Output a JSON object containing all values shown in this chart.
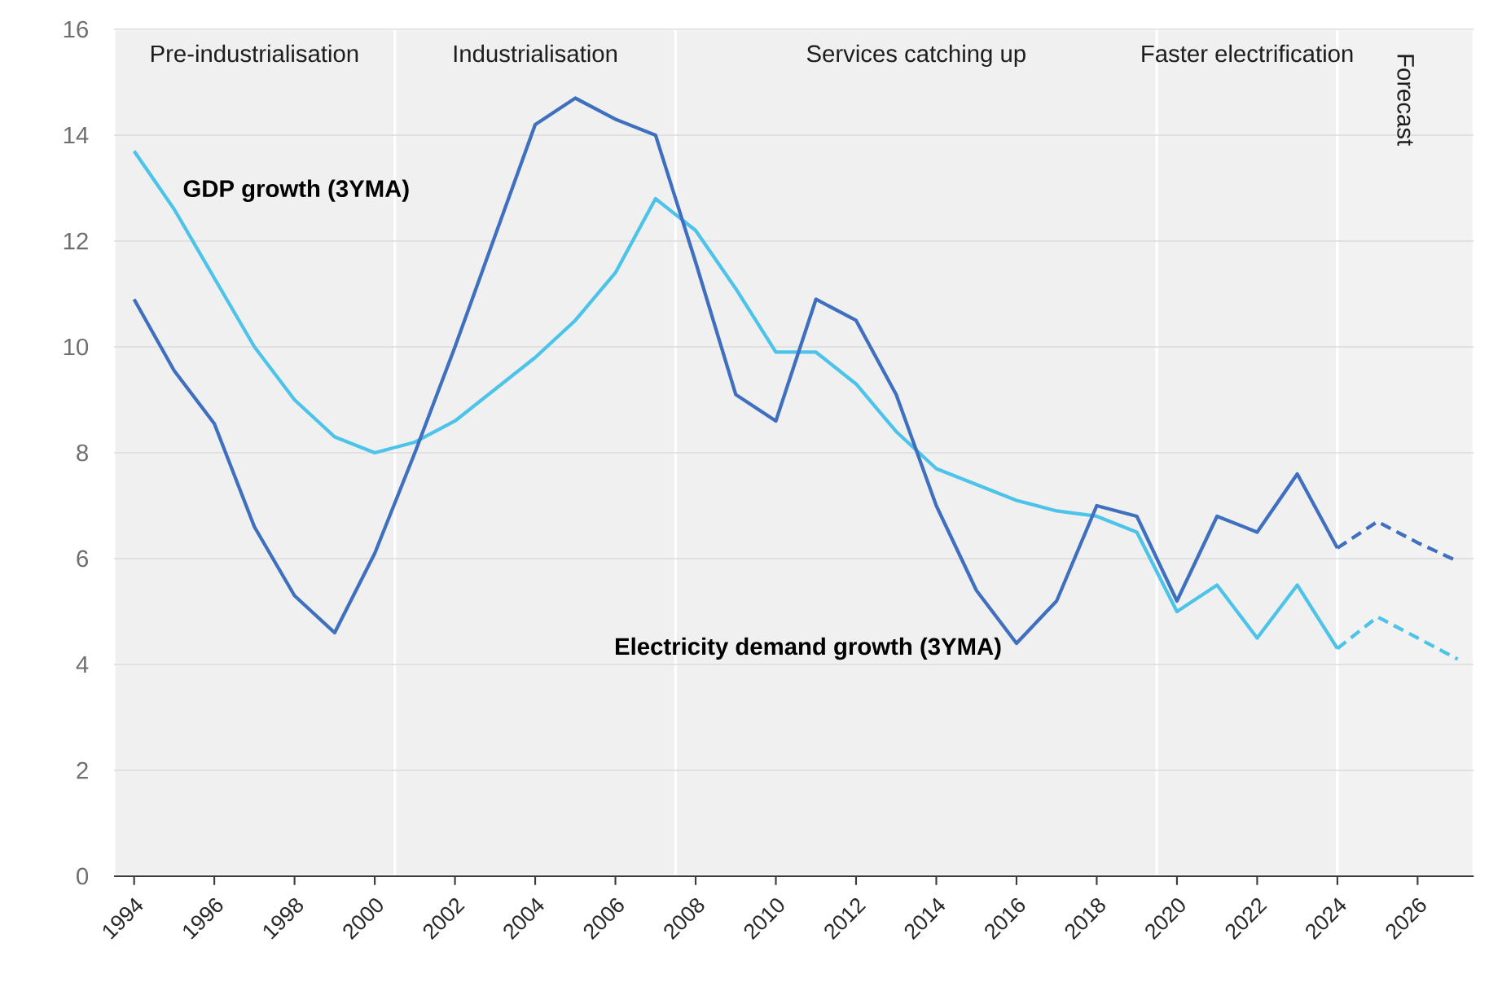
{
  "chart_data": {
    "type": "line",
    "xlim": [
      1993.5,
      2027.4
    ],
    "ylim": [
      0,
      16
    ],
    "xticks": [
      1994,
      1996,
      1998,
      2000,
      2002,
      2004,
      2006,
      2008,
      2010,
      2012,
      2014,
      2016,
      2018,
      2020,
      2022,
      2024,
      2026
    ],
    "yticks": [
      0,
      2,
      4,
      6,
      8,
      10,
      12,
      14,
      16
    ],
    "grid": "y",
    "marker": "none",
    "bands": [
      {
        "axis": "x",
        "from": 1993.5,
        "to": 2000.5,
        "label": "Pre-industrialisation",
        "color": "#f0f0f0"
      },
      {
        "axis": "x",
        "from": 2000.5,
        "to": 2007.5,
        "label": "Industrialisation",
        "color": "#f0f0f0"
      },
      {
        "axis": "x",
        "from": 2007.5,
        "to": 2019.5,
        "label": "Services catching up",
        "color": "#f0f0f0"
      },
      {
        "axis": "x",
        "from": 2019.5,
        "to": 2024,
        "label": "Faster electrification",
        "color": "#f0f0f0"
      },
      {
        "axis": "x",
        "from": 2024,
        "to": 2027.4,
        "label": "Forecast",
        "color": "#f2f2f2"
      }
    ],
    "series": [
      {
        "name": "GDP growth (3YMA)",
        "color": "#4cc3e8",
        "line_style": "solid",
        "x": [
          1994,
          1995,
          1996,
          1997,
          1998,
          1999,
          2000,
          2001,
          2002,
          2003,
          2004,
          2005,
          2006,
          2007,
          2008,
          2009,
          2010,
          2011,
          2012,
          2013,
          2014,
          2015,
          2016,
          2017,
          2018,
          2019,
          2020,
          2021,
          2022,
          2023,
          2024
        ],
        "values": [
          13.7,
          12.6,
          11.3,
          10.0,
          9.0,
          8.3,
          8.0,
          8.2,
          8.6,
          9.2,
          9.8,
          10.5,
          11.4,
          12.8,
          12.2,
          11.1,
          9.9,
          9.9,
          9.3,
          8.4,
          7.7,
          7.4,
          7.1,
          6.9,
          6.8,
          6.5,
          5.0,
          5.5,
          4.5,
          5.5,
          4.3
        ]
      },
      {
        "name": "Electricity demand growth (3YMA)",
        "color": "#3f6fbf",
        "line_style": "solid",
        "x": [
          1994,
          1995,
          1996,
          1997,
          1998,
          1999,
          2000,
          2001,
          2002,
          2003,
          2004,
          2005,
          2006,
          2007,
          2008,
          2009,
          2010,
          2011,
          2012,
          2013,
          2014,
          2015,
          2016,
          2017,
          2018,
          2019,
          2020,
          2021,
          2022,
          2023,
          2024
        ],
        "values": [
          10.9,
          9.55,
          8.55,
          6.6,
          5.3,
          4.6,
          6.1,
          8.0,
          10.0,
          12.1,
          14.2,
          14.7,
          14.3,
          14.0,
          11.6,
          9.1,
          8.6,
          10.9,
          10.5,
          9.1,
          7.0,
          5.4,
          4.4,
          5.2,
          7.0,
          6.8,
          5.2,
          6.8,
          6.5,
          7.6,
          6.2
        ]
      },
      {
        "color": "#4cc3e8",
        "line_style": "dashed",
        "x": [
          2024,
          2025,
          2026,
          2027
        ],
        "values": [
          4.3,
          4.9,
          4.5,
          4.1
        ]
      },
      {
        "color": "#3f6fbf",
        "line_style": "dashed",
        "x": [
          2024,
          2025,
          2026,
          2027
        ],
        "values": [
          6.2,
          6.7,
          6.3,
          5.95
        ]
      }
    ]
  }
}
